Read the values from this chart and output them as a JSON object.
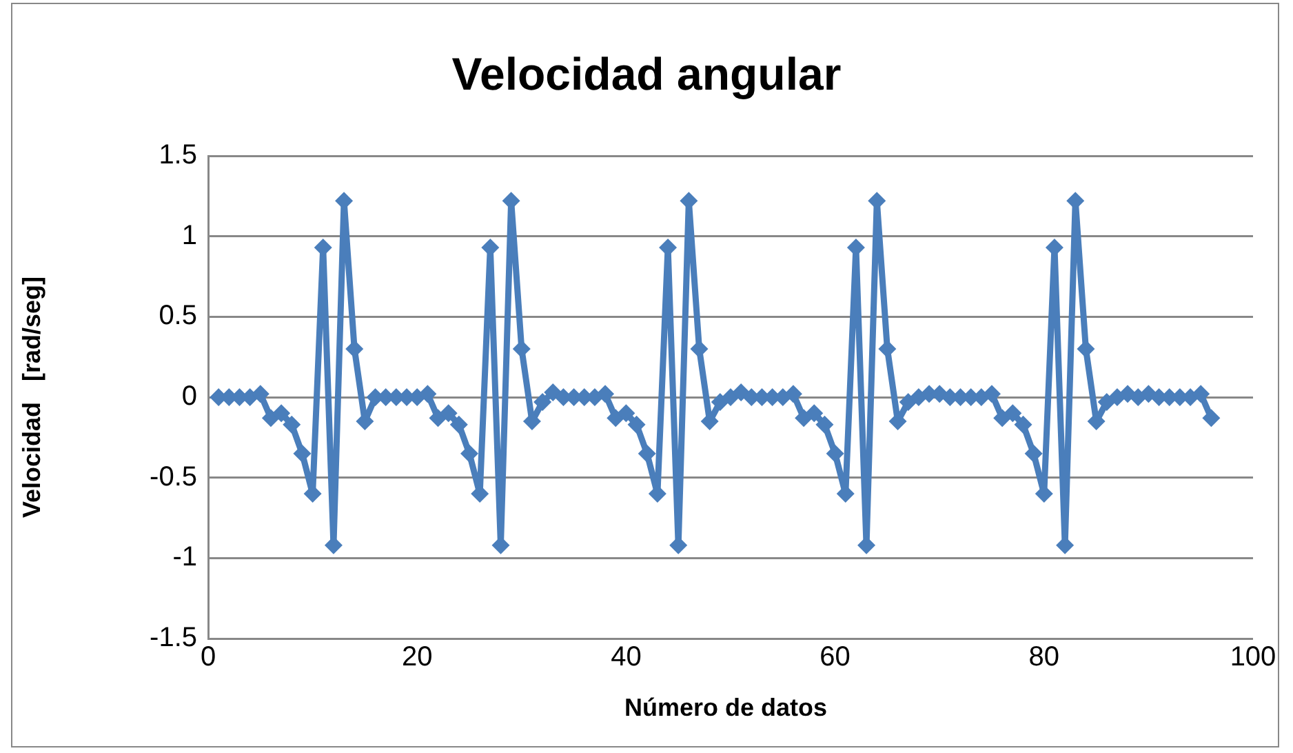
{
  "chart_data": {
    "type": "scatter",
    "title": "Velocidad angular",
    "xlabel": "Número de datos",
    "ylabel": "Velocidad   [rad/seg]",
    "xlim": [
      0,
      100
    ],
    "xticks": [
      0,
      20,
      40,
      60,
      80,
      100
    ],
    "ylim": [
      -1.5,
      1.5
    ],
    "yticks": [
      -1.5,
      -1,
      -0.5,
      0,
      0.5,
      1,
      1.5
    ],
    "grid": "y",
    "legend": false,
    "marker": "diamond",
    "line_style": "solid",
    "series": [
      {
        "type": "line",
        "color": "#4a7ebb",
        "x": [
          1,
          2,
          3,
          4,
          5,
          6,
          7,
          8,
          9,
          10,
          11,
          12,
          13,
          14,
          15,
          16,
          17,
          18,
          19,
          20,
          21,
          22,
          23,
          24,
          25,
          26,
          27,
          28,
          29,
          30,
          31,
          32,
          33,
          34,
          35,
          36,
          37,
          38,
          39,
          40,
          41,
          42,
          43,
          44,
          45,
          46,
          47,
          48,
          49,
          50,
          51,
          52,
          53,
          54,
          55,
          56,
          57,
          58,
          59,
          60,
          61,
          62,
          63,
          64,
          65,
          66,
          67,
          68,
          69,
          70,
          71,
          72,
          73,
          74,
          75,
          76,
          77,
          78,
          79,
          80,
          81,
          82,
          83,
          84,
          85,
          86,
          87,
          88,
          89,
          90,
          91,
          92,
          93,
          94,
          95,
          96
        ],
        "values": [
          0,
          0,
          0,
          0,
          0.02,
          -0.13,
          -0.1,
          -0.17,
          -0.35,
          -0.6,
          0.93,
          -0.92,
          1.22,
          0.3,
          -0.15,
          0,
          0,
          0,
          0,
          0,
          0.02,
          -0.13,
          -0.1,
          -0.17,
          -0.35,
          -0.6,
          0.93,
          -0.92,
          1.22,
          0.3,
          -0.15,
          -0.03,
          0.03,
          0,
          0,
          0,
          0,
          0.02,
          -0.13,
          -0.1,
          -0.17,
          -0.35,
          -0.6,
          0.93,
          -0.92,
          1.22,
          0.3,
          -0.15,
          -0.03,
          0,
          0.03,
          0,
          0,
          0,
          0,
          0.02,
          -0.13,
          -0.1,
          -0.17,
          -0.35,
          -0.6,
          0.93,
          -0.92,
          1.22,
          0.3,
          -0.15,
          -0.03,
          0,
          0.02,
          0.02,
          0,
          0,
          0,
          0,
          0.02,
          -0.13,
          -0.1,
          -0.17,
          -0.35,
          -0.6,
          0.93,
          -0.92,
          1.22,
          0.3,
          -0.15,
          -0.03,
          0,
          0.02,
          0,
          0.02,
          0,
          0,
          0,
          0,
          0.02,
          -0.13
        ]
      }
    ]
  }
}
